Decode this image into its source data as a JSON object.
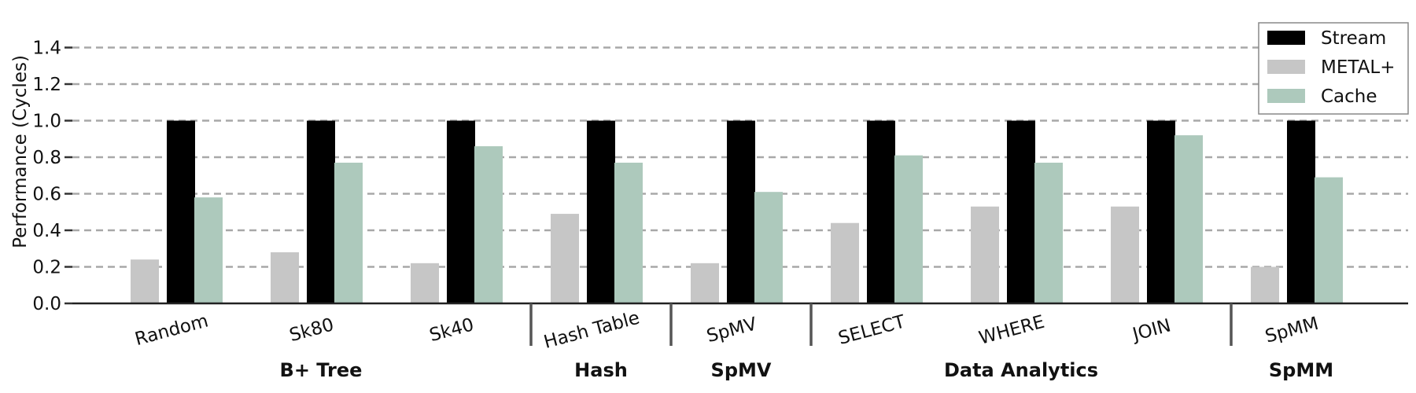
{
  "chart_data": {
    "type": "bar",
    "ylabel": "Performance (Cycles)",
    "xlabel": "",
    "ylim": [
      0,
      1.45
    ],
    "yticks": [
      "0.0",
      "0.2",
      "0.4",
      "0.6",
      "0.8",
      "1.0",
      "1.2",
      "1.4"
    ],
    "grid": "horizontal dashed",
    "legend_position": "top-right",
    "categories": [
      "Random",
      "Sk80",
      "Sk40",
      "Hash Table",
      "SpMV",
      "SELECT",
      "WHERE",
      "JOIN",
      "SpMM"
    ],
    "groups": [
      {
        "label": "B+ Tree",
        "categories": [
          "Random",
          "Sk80",
          "Sk40"
        ]
      },
      {
        "label": "Hash",
        "categories": [
          "Hash Table"
        ]
      },
      {
        "label": "SpMV",
        "categories": [
          "SpMV"
        ]
      },
      {
        "label": "Data Analytics",
        "categories": [
          "SELECT",
          "WHERE",
          "JOIN"
        ]
      },
      {
        "label": "SpMM",
        "categories": [
          "SpMM"
        ]
      }
    ],
    "series": [
      {
        "name": "METAL+",
        "color": "#c6c6c6",
        "values": [
          0.24,
          0.28,
          0.22,
          0.49,
          0.22,
          0.44,
          0.53,
          0.53,
          0.2
        ]
      },
      {
        "name": "Stream",
        "color": "#000000",
        "values": [
          1.0,
          1.0,
          1.0,
          1.0,
          1.0,
          1.0,
          1.0,
          1.0,
          1.0
        ]
      },
      {
        "name": "Cache",
        "color": "#adc9bc",
        "values": [
          0.58,
          0.77,
          0.86,
          0.77,
          0.61,
          0.81,
          0.77,
          0.92,
          0.69
        ]
      }
    ],
    "legend_order": [
      "Stream",
      "METAL+",
      "Cache"
    ]
  }
}
